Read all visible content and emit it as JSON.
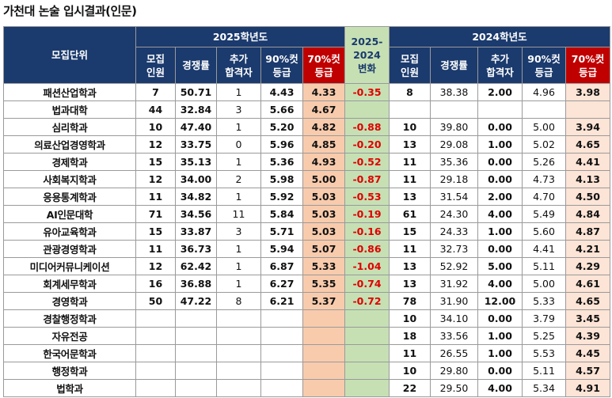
{
  "title": "가천대 논술 입시결과(인문)",
  "header": {
    "unit_label": "모집단위",
    "group_2025": "2025학년도",
    "diff_label_line1": "2025-",
    "diff_label_line2": "2024",
    "diff_label_line3": "변화",
    "group_2024": "2024학년도",
    "col_quota": [
      "모집",
      "인원"
    ],
    "col_rate": "경쟁률",
    "col_extra": [
      "추가",
      "합격자"
    ],
    "col_90": [
      "90%컷",
      "등급"
    ],
    "col_70": [
      "70%컷",
      "등급"
    ]
  },
  "rows": [
    {
      "unit": "패션산업학과",
      "q25": "7",
      "r25": "50.71",
      "e25": "1",
      "c90_25": "4.43",
      "c70_25": "4.33",
      "diff": "-0.35",
      "q24": "8",
      "r24": "38.38",
      "e24": "2.00",
      "c90_24": "4.96",
      "c70_24": "3.98"
    },
    {
      "unit": "법과대학",
      "q25": "44",
      "r25": "32.84",
      "e25": "3",
      "c90_25": "5.66",
      "c70_25": "4.67",
      "diff": "",
      "q24": "",
      "r24": "",
      "e24": "",
      "c90_24": "",
      "c70_24": ""
    },
    {
      "unit": "심리학과",
      "q25": "10",
      "r25": "47.40",
      "e25": "1",
      "c90_25": "5.20",
      "c70_25": "4.82",
      "diff": "-0.88",
      "q24": "10",
      "r24": "39.80",
      "e24": "0.00",
      "c90_24": "5.00",
      "c70_24": "3.94"
    },
    {
      "unit": "의료산업경영학과",
      "q25": "12",
      "r25": "33.75",
      "e25": "0",
      "c90_25": "5.96",
      "c70_25": "4.85",
      "diff": "-0.20",
      "q24": "13",
      "r24": "29.08",
      "e24": "1.00",
      "c90_24": "5.02",
      "c70_24": "4.65"
    },
    {
      "unit": "경제학과",
      "q25": "15",
      "r25": "35.13",
      "e25": "1",
      "c90_25": "5.36",
      "c70_25": "4.93",
      "diff": "-0.52",
      "q24": "11",
      "r24": "35.36",
      "e24": "0.00",
      "c90_24": "5.26",
      "c70_24": "4.41"
    },
    {
      "unit": "사회복지학과",
      "q25": "12",
      "r25": "34.00",
      "e25": "2",
      "c90_25": "5.98",
      "c70_25": "5.00",
      "diff": "-0.87",
      "q24": "11",
      "r24": "29.18",
      "e24": "0.00",
      "c90_24": "4.73",
      "c70_24": "4.13"
    },
    {
      "unit": "응용통계학과",
      "q25": "11",
      "r25": "34.82",
      "e25": "1",
      "c90_25": "5.92",
      "c70_25": "5.03",
      "diff": "-0.53",
      "q24": "13",
      "r24": "31.54",
      "e24": "2.00",
      "c90_24": "4.70",
      "c70_24": "4.50"
    },
    {
      "unit": "AI인문대학",
      "q25": "71",
      "r25": "34.56",
      "e25": "11",
      "c90_25": "5.84",
      "c70_25": "5.03",
      "diff": "-0.19",
      "q24": "61",
      "r24": "24.30",
      "e24": "4.00",
      "c90_24": "5.49",
      "c70_24": "4.84"
    },
    {
      "unit": "유아교육학과",
      "q25": "15",
      "r25": "33.87",
      "e25": "3",
      "c90_25": "5.71",
      "c70_25": "5.03",
      "diff": "-0.16",
      "q24": "15",
      "r24": "24.33",
      "e24": "1.00",
      "c90_24": "5.60",
      "c70_24": "4.87"
    },
    {
      "unit": "관광경영학과",
      "q25": "11",
      "r25": "36.73",
      "e25": "1",
      "c90_25": "5.94",
      "c70_25": "5.07",
      "diff": "-0.86",
      "q24": "11",
      "r24": "32.73",
      "e24": "0.00",
      "c90_24": "4.41",
      "c70_24": "4.21"
    },
    {
      "unit": "미디어커뮤니케이션",
      "q25": "12",
      "r25": "62.42",
      "e25": "1",
      "c90_25": "6.87",
      "c70_25": "5.33",
      "diff": "-1.04",
      "q24": "13",
      "r24": "52.92",
      "e24": "5.00",
      "c90_24": "5.11",
      "c70_24": "4.29"
    },
    {
      "unit": "회계세무학과",
      "q25": "16",
      "r25": "36.88",
      "e25": "1",
      "c90_25": "6.27",
      "c70_25": "5.35",
      "diff": "-0.74",
      "q24": "13",
      "r24": "31.92",
      "e24": "4.00",
      "c90_24": "5.00",
      "c70_24": "4.61"
    },
    {
      "unit": "경영학과",
      "q25": "50",
      "r25": "47.22",
      "e25": "8",
      "c90_25": "6.21",
      "c70_25": "5.37",
      "diff": "-0.72",
      "q24": "78",
      "r24": "31.90",
      "e24": "12.00",
      "c90_24": "5.33",
      "c70_24": "4.65"
    },
    {
      "unit": "경찰행정학과",
      "q25": "",
      "r25": "",
      "e25": "",
      "c90_25": "",
      "c70_25": "",
      "diff": "",
      "q24": "10",
      "r24": "34.10",
      "e24": "0.00",
      "c90_24": "3.79",
      "c70_24": "3.45"
    },
    {
      "unit": "자유전공",
      "q25": "",
      "r25": "",
      "e25": "",
      "c90_25": "",
      "c70_25": "",
      "diff": "",
      "q24": "18",
      "r24": "33.56",
      "e24": "1.00",
      "c90_24": "5.25",
      "c70_24": "4.39"
    },
    {
      "unit": "한국어문학과",
      "q25": "",
      "r25": "",
      "e25": "",
      "c90_25": "",
      "c70_25": "",
      "diff": "",
      "q24": "11",
      "r24": "26.55",
      "e24": "1.00",
      "c90_24": "5.53",
      "c70_24": "4.45"
    },
    {
      "unit": "행정학과",
      "q25": "",
      "r25": "",
      "e25": "",
      "c90_25": "",
      "c70_25": "",
      "diff": "",
      "q24": "10",
      "r24": "29.80",
      "e24": "0.00",
      "c90_24": "5.11",
      "c70_24": "4.57"
    },
    {
      "unit": "법학과",
      "q25": "",
      "r25": "",
      "e25": "",
      "c90_25": "",
      "c70_25": "",
      "diff": "",
      "q24": "22",
      "r24": "29.50",
      "e24": "4.00",
      "c90_24": "5.34",
      "c70_24": "4.91"
    }
  ]
}
